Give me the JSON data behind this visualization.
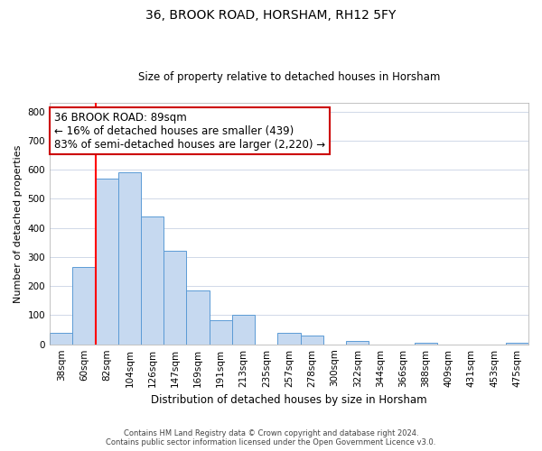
{
  "title": "36, BROOK ROAD, HORSHAM, RH12 5FY",
  "subtitle": "Size of property relative to detached houses in Horsham",
  "xlabel": "Distribution of detached houses by size in Horsham",
  "ylabel": "Number of detached properties",
  "bar_labels": [
    "38sqm",
    "60sqm",
    "82sqm",
    "104sqm",
    "126sqm",
    "147sqm",
    "169sqm",
    "191sqm",
    "213sqm",
    "235sqm",
    "257sqm",
    "278sqm",
    "300sqm",
    "322sqm",
    "344sqm",
    "366sqm",
    "388sqm",
    "409sqm",
    "431sqm",
    "453sqm",
    "475sqm"
  ],
  "bar_values": [
    38,
    265,
    570,
    590,
    440,
    320,
    186,
    82,
    100,
    0,
    38,
    30,
    0,
    12,
    0,
    0,
    5,
    0,
    0,
    0,
    5
  ],
  "bar_color": "#c6d9f0",
  "bar_edge_color": "#5b9bd5",
  "ann_line1": "36 BROOK ROAD: 89sqm",
  "ann_line2": "← 16% of detached houses are smaller (439)",
  "ann_line3": "83% of semi-detached houses are larger (2,220) →",
  "redline_bar_index": 2,
  "ylim": [
    0,
    830
  ],
  "yticks": [
    0,
    100,
    200,
    300,
    400,
    500,
    600,
    700,
    800
  ],
  "footnote1": "Contains HM Land Registry data © Crown copyright and database right 2024.",
  "footnote2": "Contains public sector information licensed under the Open Government Licence v3.0.",
  "background_color": "#ffffff",
  "grid_color": "#d0d8e8",
  "title_fontsize": 10,
  "subtitle_fontsize": 8.5,
  "ylabel_fontsize": 8,
  "xlabel_fontsize": 8.5,
  "tick_fontsize": 7.5,
  "ann_fontsize": 8.5,
  "footnote_fontsize": 6.0
}
